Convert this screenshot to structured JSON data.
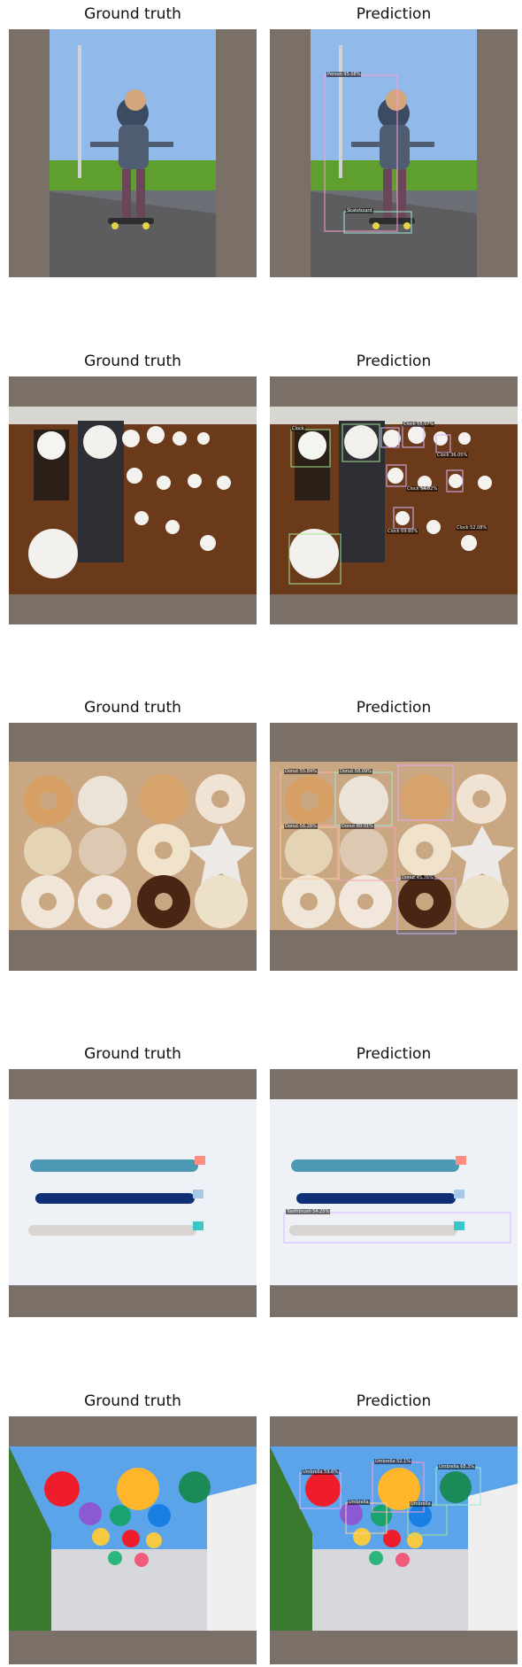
{
  "rows": [
    {
      "ground_truth_title": "Ground truth",
      "prediction_title": "Prediction",
      "scene": "boy-on-skateboard",
      "prediction_labels": [
        {
          "text": "Person 95.08%"
        },
        {
          "text": "Skateboard"
        }
      ]
    },
    {
      "ground_truth_title": "Ground truth",
      "prediction_title": "Prediction",
      "scene": "wall-of-clocks",
      "prediction_labels": [
        {
          "text": "Clock"
        },
        {
          "text": "Clock 55.57%"
        },
        {
          "text": "Clock 36.05%"
        },
        {
          "text": "Clock 54.82%"
        },
        {
          "text": "Clock 69.60%"
        },
        {
          "text": "Clock 52.08%"
        }
      ]
    },
    {
      "ground_truth_title": "Ground truth",
      "prediction_title": "Prediction",
      "scene": "box-of-donuts",
      "prediction_labels": [
        {
          "text": "Donut 55.84%"
        },
        {
          "text": "Donut 58.09%"
        },
        {
          "text": "Donut 56.28%"
        },
        {
          "text": "Donut 60.01%"
        },
        {
          "text": "Donut 45.76%"
        }
      ]
    },
    {
      "ground_truth_title": "Ground truth",
      "prediction_title": "Prediction",
      "scene": "three-toothbrushes",
      "prediction_labels": [
        {
          "text": "Toothbrush 54.25%"
        }
      ]
    },
    {
      "ground_truth_title": "Ground truth",
      "prediction_title": "Prediction",
      "scene": "hanging-umbrellas",
      "prediction_labels": [
        {
          "text": "Umbrella 59.6%"
        },
        {
          "text": "Umbrella 52.1%"
        },
        {
          "text": "Umbrella 68.3%"
        },
        {
          "text": "Umbrella"
        },
        {
          "text": "Umbrella"
        }
      ]
    }
  ],
  "colors": {
    "padding_gray": "#7a7068",
    "sky": "#8fb8e6",
    "grass": "#5f9f2d",
    "wood": "#6b3e1f",
    "cardboard": "#c9a783",
    "white_cloth": "#eef1f5",
    "detection_purple": "#d7b6ff",
    "detection_green": "#a7e38f"
  }
}
